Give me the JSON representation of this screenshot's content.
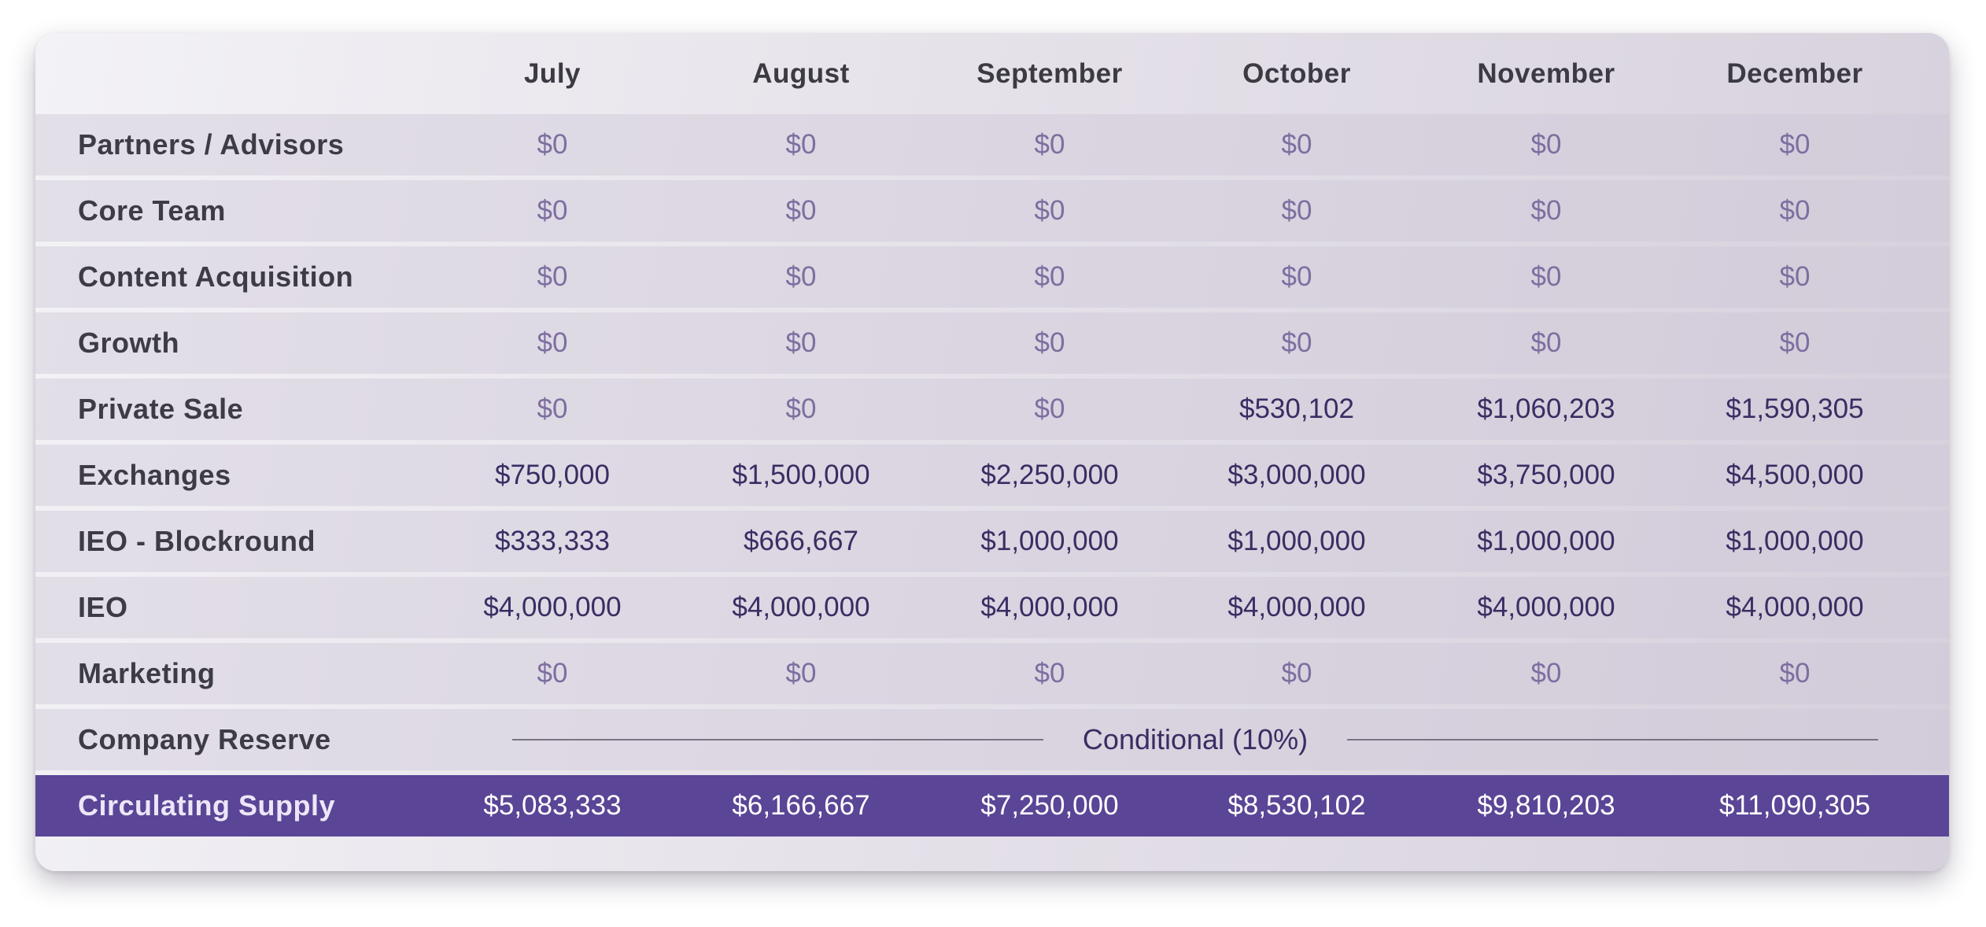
{
  "chart_data": {
    "type": "table",
    "columns": [
      "July",
      "August",
      "September",
      "October",
      "November",
      "December"
    ],
    "rows": [
      {
        "label": "Partners / Advisors",
        "values": [
          "$0",
          "$0",
          "$0",
          "$0",
          "$0",
          "$0"
        ]
      },
      {
        "label": "Core Team",
        "values": [
          "$0",
          "$0",
          "$0",
          "$0",
          "$0",
          "$0"
        ]
      },
      {
        "label": "Content Acquisition",
        "values": [
          "$0",
          "$0",
          "$0",
          "$0",
          "$0",
          "$0"
        ]
      },
      {
        "label": "Growth",
        "values": [
          "$0",
          "$0",
          "$0",
          "$0",
          "$0",
          "$0"
        ]
      },
      {
        "label": "Private Sale",
        "values": [
          "$0",
          "$0",
          "$0",
          "$530,102",
          "$1,060,203",
          "$1,590,305"
        ]
      },
      {
        "label": "Exchanges",
        "values": [
          "$750,000",
          "$1,500,000",
          "$2,250,000",
          "$3,000,000",
          "$3,750,000",
          "$4,500,000"
        ]
      },
      {
        "label": "IEO - Blockround",
        "values": [
          "$333,333",
          "$666,667",
          "$1,000,000",
          "$1,000,000",
          "$1,000,000",
          "$1,000,000"
        ]
      },
      {
        "label": "IEO",
        "values": [
          "$4,000,000",
          "$4,000,000",
          "$4,000,000",
          "$4,000,000",
          "$4,000,000",
          "$4,000,000"
        ]
      },
      {
        "label": "Marketing",
        "values": [
          "$0",
          "$0",
          "$0",
          "$0",
          "$0",
          "$0"
        ]
      },
      {
        "label": "Company Reserve",
        "span_text": "Conditional (10%)"
      }
    ],
    "total_row": {
      "label": "Circulating Supply",
      "values": [
        "$5,083,333",
        "$6,166,667",
        "$7,250,000",
        "$8,530,102",
        "$9,810,203",
        "$11,090,305"
      ]
    },
    "colors": {
      "total_row_background": "#5b4596",
      "zero_value": "#7e6ea0",
      "value": "#3a2d63"
    }
  }
}
